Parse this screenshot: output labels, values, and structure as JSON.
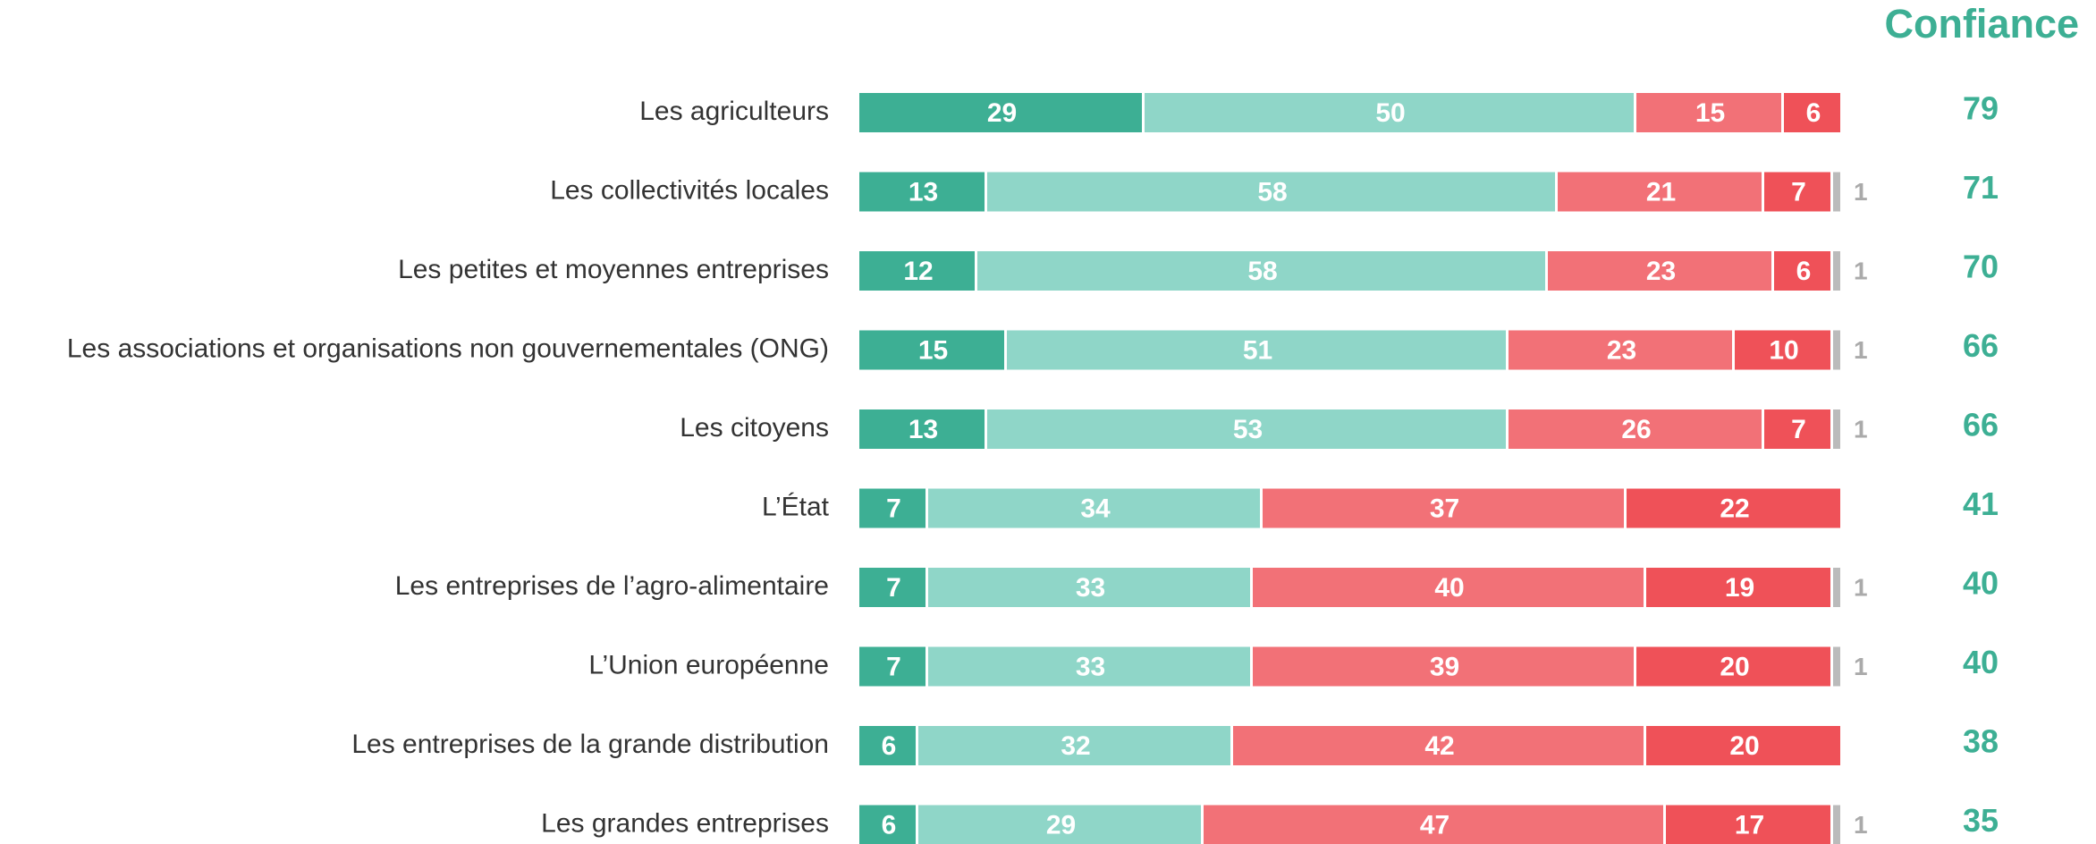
{
  "chart_data": {
    "type": "stacked-bar",
    "categories": [
      "Les agriculteurs",
      "Les collectivités locales",
      "Les petites et moyennes entreprises",
      "Les associations et organisations non gouvernementales (ONG)",
      "Les citoyens",
      "L’État",
      "Les entreprises de l’agro-alimentaire",
      "L’Union européenne",
      "Les entreprises de la grande distribution",
      "Les grandes entreprises"
    ],
    "series": [
      {
        "color": "#3daf94",
        "values": [
          29,
          13,
          12,
          15,
          13,
          7,
          7,
          7,
          6,
          6
        ]
      },
      {
        "color": "#8fd6c8",
        "values": [
          50,
          58,
          58,
          51,
          53,
          34,
          33,
          33,
          32,
          29
        ]
      },
      {
        "color": "#f27177",
        "values": [
          15,
          21,
          23,
          23,
          26,
          37,
          40,
          39,
          42,
          47
        ]
      },
      {
        "color": "#ef5158",
        "values": [
          6,
          7,
          6,
          10,
          7,
          22,
          19,
          20,
          20,
          17
        ]
      },
      {
        "color": "#bbbbbb",
        "values": [
          null,
          1,
          1,
          1,
          1,
          null,
          1,
          1,
          null,
          1
        ]
      }
    ],
    "xlim": [
      0,
      100
    ],
    "totals": {
      "title": "Confiance",
      "color": "#3daf94",
      "values": [
        79,
        71,
        70,
        66,
        66,
        41,
        40,
        40,
        38,
        35
      ]
    }
  }
}
